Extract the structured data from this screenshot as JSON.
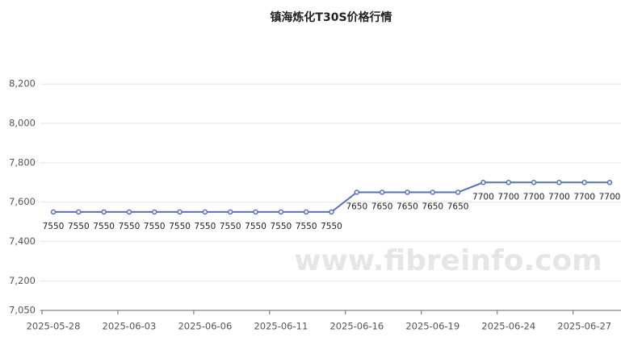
{
  "chart_data": {
    "type": "line",
    "title": "镇海炼化T30S价格行情",
    "watermark": "www.fibreinfo.com",
    "categories": [
      "2025-05-28",
      null,
      null,
      "2025-06-03",
      null,
      null,
      "2025-06-06",
      null,
      null,
      "2025-06-11",
      null,
      null,
      "2025-06-16",
      null,
      null,
      "2025-06-19",
      null,
      null,
      "2025-06-24",
      null,
      null,
      "2025-06-27",
      null
    ],
    "series": [
      {
        "name": "T30S",
        "color": "#5470c6",
        "values": [
          7550,
          7550,
          7550,
          7550,
          7550,
          7550,
          7550,
          7550,
          7550,
          7550,
          7550,
          7550,
          7650,
          7650,
          7650,
          7650,
          7650,
          7700,
          7700,
          7700,
          7700,
          7700,
          7700
        ]
      }
    ],
    "ylim": [
      7050,
      8250
    ],
    "yticks": [
      {
        "value": 7050,
        "label": "7,050"
      },
      {
        "value": 7200,
        "label": "7,200"
      },
      {
        "value": 7400,
        "label": "7,400"
      },
      {
        "value": 7600,
        "label": "7,600"
      },
      {
        "value": 7800,
        "label": "7,800"
      },
      {
        "value": 8000,
        "label": "8,000"
      },
      {
        "value": 8200,
        "label": "8,200"
      }
    ],
    "grid": true
  }
}
